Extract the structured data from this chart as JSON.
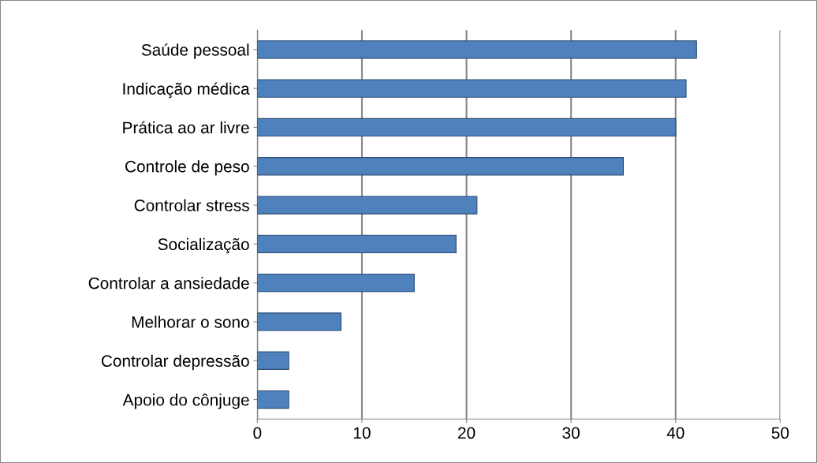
{
  "chart_data": {
    "type": "bar",
    "orientation": "horizontal",
    "categories": [
      "Saúde pessoal",
      "Indicação médica",
      "Prática ao ar livre",
      "Controle de peso",
      "Controlar stress",
      "Socialização",
      "Controlar a ansiedade",
      "Melhorar o sono",
      "Controlar depressão",
      "Apoio do cônjuge"
    ],
    "values": [
      42,
      41,
      40,
      35,
      21,
      19,
      15,
      8,
      3,
      3
    ],
    "color": "#4f81bd",
    "xlim": [
      0,
      50
    ],
    "xticks": [
      0,
      10,
      20,
      30,
      40,
      50
    ],
    "grid": "x",
    "legend": false
  }
}
